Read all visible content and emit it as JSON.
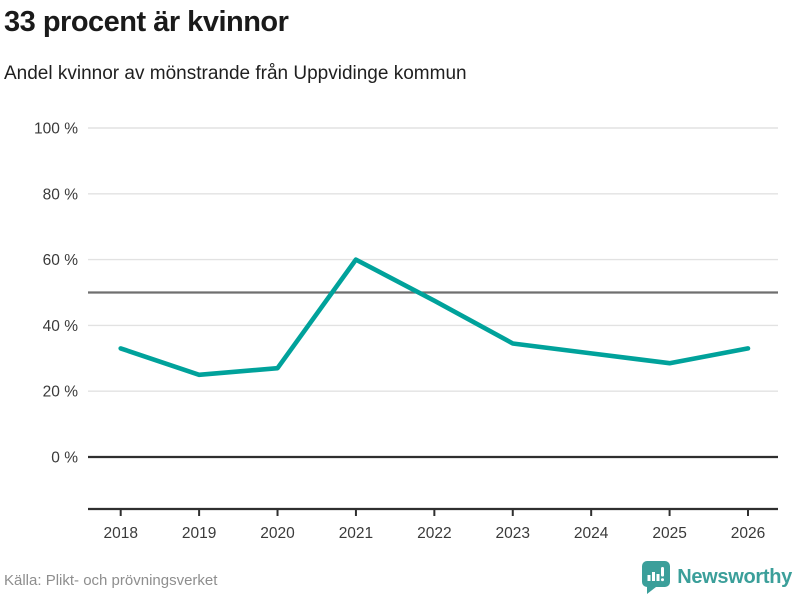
{
  "header": {
    "title": "33 procent är kvinnor",
    "subtitle": "Andel kvinnor av mönstrande från Uppvidinge kommun"
  },
  "chart_data": {
    "type": "line",
    "x": [
      2018,
      2019,
      2020,
      2021,
      2022,
      2023,
      2024,
      2025,
      2026
    ],
    "series": [
      {
        "name": "Andel kvinnor av mönstrande",
        "values": [
          33,
          25,
          27,
          60,
          47.5,
          34.5,
          31.5,
          28.5,
          33
        ]
      }
    ],
    "unit": "%",
    "ylim": [
      0,
      100
    ],
    "yticks": [
      0,
      20,
      40,
      60,
      80,
      100
    ],
    "ytick_suffix": " %",
    "reference_line": 50,
    "grid": true,
    "legend_position": "none",
    "title": "33 procent är kvinnor",
    "subtitle": "Andel kvinnor av mönstrande från Uppvidinge kommun",
    "xlabel": "",
    "ylabel": ""
  },
  "colors": {
    "line": "#00a29b",
    "grid": "#e2e2e2",
    "reference_line": "#6f6f6f",
    "zero_line": "#2f2f2f",
    "axis": "#2f2f2f",
    "tick_label": "#3a3a3a",
    "brand_teal": "#3b9f9a"
  },
  "footer": {
    "source": "Källa: Plikt- och prövningsverket",
    "brand": "Newsworthy"
  },
  "icons": {
    "logo": "newsworthy-speech-bubble-barchart-icon"
  }
}
